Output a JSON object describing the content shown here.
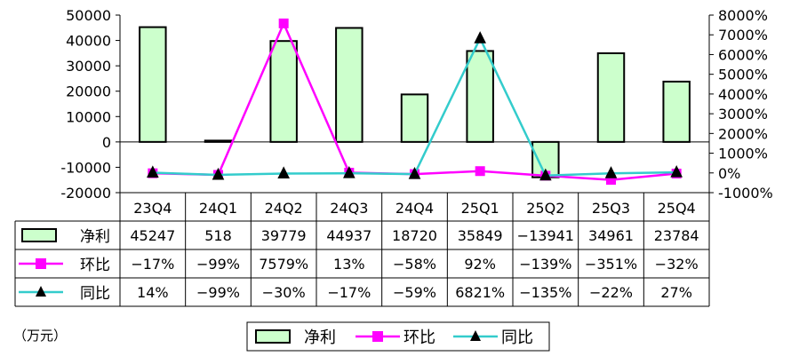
{
  "chart_data": {
    "type": "bar",
    "categories": [
      "23Q4",
      "24Q1",
      "24Q2",
      "24Q3",
      "24Q4",
      "25Q1",
      "25Q2",
      "25Q3",
      "25Q4"
    ],
    "y_left": {
      "min": -20000,
      "max": 50000,
      "step": 10000,
      "ticks": [
        "50000",
        "40000",
        "30000",
        "20000",
        "10000",
        "0",
        "-10000",
        "-20000"
      ]
    },
    "y_right": {
      "min": -1000,
      "max": 8000,
      "step": 1000,
      "ticks": [
        "8000%",
        "7000%",
        "6000%",
        "5000%",
        "4000%",
        "3000%",
        "2000%",
        "1000%",
        "0%",
        "-1000%"
      ]
    },
    "unit_label": "（万元）",
    "series": [
      {
        "name": "净利",
        "kind": "bar",
        "axis": "left",
        "color": "#ccffcc",
        "values": [
          45247,
          518,
          39779,
          44937,
          18720,
          35849,
          -13941,
          34961,
          23784
        ],
        "labels": [
          "45247",
          "518",
          "39779",
          "44937",
          "18720",
          "35849",
          "−13941",
          "34961",
          "23784"
        ]
      },
      {
        "name": "环比",
        "kind": "line",
        "axis": "right",
        "color": "#ff00ff",
        "marker": "square",
        "values": [
          -17,
          -99,
          7579,
          13,
          -58,
          92,
          -139,
          -351,
          -32
        ],
        "labels": [
          "−17%",
          "−99%",
          "7579%",
          "13%",
          "−58%",
          "92%",
          "−139%",
          "−351%",
          "−32%"
        ]
      },
      {
        "name": "同比",
        "kind": "line",
        "axis": "right",
        "color": "#33cccc",
        "marker": "triangle",
        "values": [
          14,
          -99,
          -30,
          -17,
          -59,
          6821,
          -135,
          -22,
          27
        ],
        "labels": [
          "14%",
          "−99%",
          "−30%",
          "−17%",
          "−59%",
          "6821%",
          "−135%",
          "−22%",
          "27%"
        ]
      }
    ],
    "legend_position": "bottom",
    "grid": false
  }
}
